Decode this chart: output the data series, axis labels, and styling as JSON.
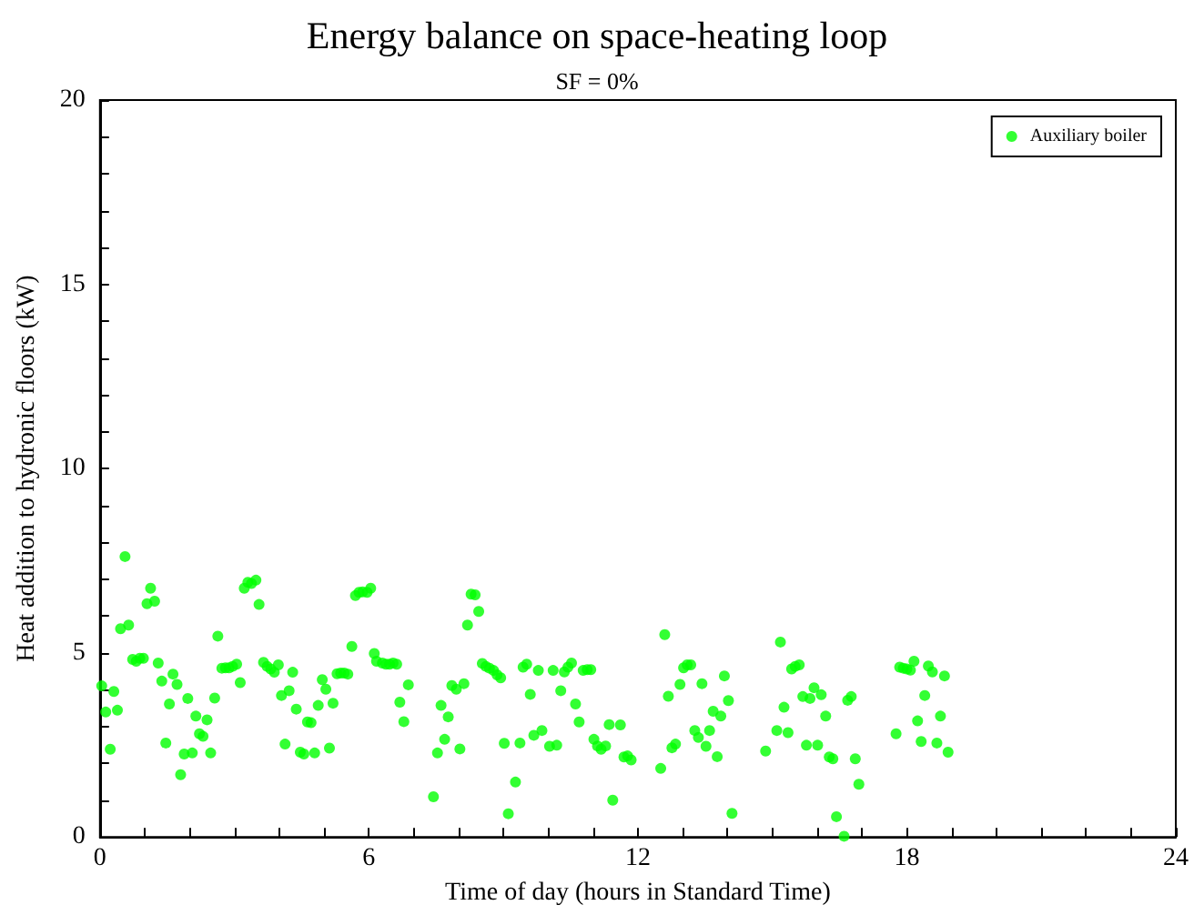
{
  "chart_data": {
    "type": "scatter",
    "title": "Energy balance on space-heating loop",
    "subtitle": "SF = 0%",
    "xlabel": "Time of day (hours in Standard Time)",
    "ylabel": "Heat addition to hydronic floors (kW)",
    "xlim": [
      0,
      24
    ],
    "ylim": [
      0,
      20
    ],
    "xticks": [
      0,
      {
        "value": 1,
        "label": null
      },
      {
        "value": 2,
        "label": null
      },
      {
        "value": 3,
        "label": null
      },
      {
        "value": 4,
        "label": null
      },
      {
        "value": 5,
        "label": null
      },
      6,
      {
        "value": 7,
        "label": null
      },
      {
        "value": 8,
        "label": null
      },
      {
        "value": 9,
        "label": null
      },
      {
        "value": 10,
        "label": null
      },
      {
        "value": 11,
        "label": null
      },
      12,
      {
        "value": 13,
        "label": null
      },
      {
        "value": 14,
        "label": null
      },
      {
        "value": 15,
        "label": null
      },
      {
        "value": 16,
        "label": null
      },
      {
        "value": 17,
        "label": null
      },
      18,
      {
        "value": 19,
        "label": null
      },
      {
        "value": 20,
        "label": null
      },
      {
        "value": 21,
        "label": null
      },
      {
        "value": 22,
        "label": null
      },
      {
        "value": 23,
        "label": null
      },
      24
    ],
    "yticks": [
      0,
      {
        "value": 1,
        "label": null
      },
      {
        "value": 2,
        "label": null
      },
      {
        "value": 3,
        "label": null
      },
      {
        "value": 4,
        "label": null
      },
      5,
      {
        "value": 6,
        "label": null
      },
      {
        "value": 7,
        "label": null
      },
      {
        "value": 8,
        "label": null
      },
      {
        "value": 9,
        "label": null
      },
      10,
      {
        "value": 11,
        "label": null
      },
      {
        "value": 12,
        "label": null
      },
      {
        "value": 13,
        "label": null
      },
      {
        "value": 14,
        "label": null
      },
      15,
      {
        "value": 16,
        "label": null
      },
      {
        "value": 17,
        "label": null
      },
      {
        "value": 18,
        "label": null
      },
      {
        "value": 19,
        "label": null
      },
      20
    ],
    "grid": false,
    "legend": "top right",
    "marker": "circle",
    "series": [
      {
        "name": "Auxiliary boiler",
        "color": "#00ff00",
        "x": [
          0.04,
          0.13,
          0.23,
          0.31,
          0.39,
          0.46,
          0.56,
          0.64,
          0.73,
          0.81,
          0.89,
          0.97,
          1.05,
          1.13,
          1.22,
          1.3,
          1.38,
          1.47,
          1.55,
          1.63,
          1.72,
          1.8,
          1.88,
          1.96,
          2.06,
          2.14,
          2.22,
          2.3,
          2.39,
          2.47,
          2.56,
          2.63,
          2.72,
          2.8,
          2.88,
          2.96,
          3.05,
          3.13,
          3.22,
          3.3,
          3.38,
          3.48,
          3.55,
          3.65,
          3.73,
          3.81,
          3.89,
          3.98,
          4.05,
          4.13,
          4.22,
          4.3,
          4.38,
          4.47,
          4.55,
          4.63,
          4.71,
          4.79,
          4.87,
          4.96,
          5.04,
          5.12,
          5.2,
          5.29,
          5.37,
          5.45,
          5.53,
          5.62,
          5.7,
          5.78,
          5.86,
          5.96,
          6.04,
          6.12,
          6.17,
          6.3,
          6.38,
          6.46,
          6.54,
          6.62,
          6.69,
          6.78,
          6.88,
          7.44,
          7.53,
          7.61,
          7.69,
          7.77,
          7.85,
          7.95,
          8.03,
          8.12,
          8.2,
          8.28,
          8.37,
          8.45,
          8.53,
          8.61,
          8.69,
          8.78,
          8.86,
          8.94,
          9.02,
          9.11,
          9.27,
          9.37,
          9.44,
          9.52,
          9.6,
          9.68,
          9.78,
          9.86,
          10.03,
          10.11,
          10.19,
          10.28,
          10.36,
          10.44,
          10.52,
          10.61,
          10.69,
          10.78,
          10.87,
          10.95,
          11.02,
          11.1,
          11.18,
          11.28,
          11.36,
          11.44,
          11.61,
          11.69,
          11.77,
          11.85,
          12.51,
          12.6,
          12.68,
          12.76,
          12.84,
          12.94,
          13.02,
          13.1,
          13.18,
          13.27,
          13.35,
          13.43,
          13.52,
          13.6,
          13.68,
          13.77,
          13.85,
          13.93,
          14.02,
          14.1,
          14.85,
          15.1,
          15.18,
          15.26,
          15.35,
          15.43,
          15.51,
          15.6,
          15.68,
          15.76,
          15.84,
          15.93,
          16.01,
          16.09,
          16.19,
          16.27,
          16.35,
          16.43,
          16.6,
          16.68,
          16.76,
          16.85,
          16.93,
          17.76,
          17.84,
          17.92,
          18.0,
          18.08,
          18.16,
          18.24,
          18.32,
          18.4,
          18.48,
          18.57,
          18.67,
          18.75,
          18.84,
          18.92
        ],
        "values": [
          4.1,
          3.39,
          2.38,
          3.95,
          3.44,
          5.65,
          7.61,
          5.75,
          4.82,
          4.77,
          4.85,
          4.85,
          6.33,
          6.75,
          6.4,
          4.72,
          4.23,
          2.55,
          3.61,
          4.42,
          4.14,
          1.69,
          2.25,
          3.76,
          2.28,
          3.28,
          2.8,
          2.73,
          3.18,
          2.28,
          3.77,
          5.45,
          4.58,
          4.59,
          4.59,
          4.63,
          4.69,
          4.19,
          6.75,
          6.91,
          6.88,
          6.97,
          6.31,
          4.74,
          4.63,
          4.56,
          4.47,
          4.67,
          3.84,
          2.52,
          3.97,
          4.47,
          3.47,
          2.3,
          2.25,
          3.12,
          3.1,
          2.28,
          3.57,
          4.27,
          4.01,
          2.41,
          3.63,
          4.43,
          4.45,
          4.45,
          4.42,
          5.17,
          6.55,
          6.64,
          6.65,
          6.64,
          6.75,
          4.98,
          4.77,
          4.72,
          4.69,
          4.69,
          4.72,
          4.69,
          3.66,
          3.13,
          4.13,
          1.09,
          2.28,
          3.57,
          2.65,
          3.26,
          4.11,
          4.01,
          2.39,
          4.16,
          5.75,
          6.59,
          6.57,
          6.12,
          4.71,
          4.63,
          4.58,
          4.52,
          4.4,
          4.32,
          2.54,
          0.63,
          1.49,
          2.55,
          4.61,
          4.69,
          3.87,
          2.76,
          4.52,
          2.89,
          2.46,
          4.52,
          2.49,
          3.97,
          4.48,
          4.61,
          4.72,
          3.61,
          3.12,
          4.52,
          4.54,
          4.54,
          2.65,
          2.47,
          2.38,
          2.47,
          3.05,
          1.0,
          3.04,
          2.17,
          2.2,
          2.09,
          1.86,
          5.49,
          3.82,
          2.42,
          2.52,
          4.14,
          4.59,
          4.67,
          4.67,
          2.89,
          2.7,
          4.16,
          2.46,
          2.89,
          3.41,
          2.18,
          3.28,
          4.37,
          3.7,
          0.64,
          2.33,
          2.89,
          5.29,
          3.52,
          2.83,
          4.56,
          4.63,
          4.67,
          3.81,
          2.49,
          3.76,
          4.05,
          2.49,
          3.86,
          3.28,
          2.17,
          2.12,
          0.55,
          0.02,
          3.71,
          3.81,
          2.12,
          1.43,
          2.8,
          4.61,
          4.58,
          4.56,
          4.53,
          4.77,
          3.15,
          2.59,
          3.84,
          4.64,
          4.48,
          2.55,
          3.28,
          4.37,
          2.3
        ]
      }
    ]
  }
}
